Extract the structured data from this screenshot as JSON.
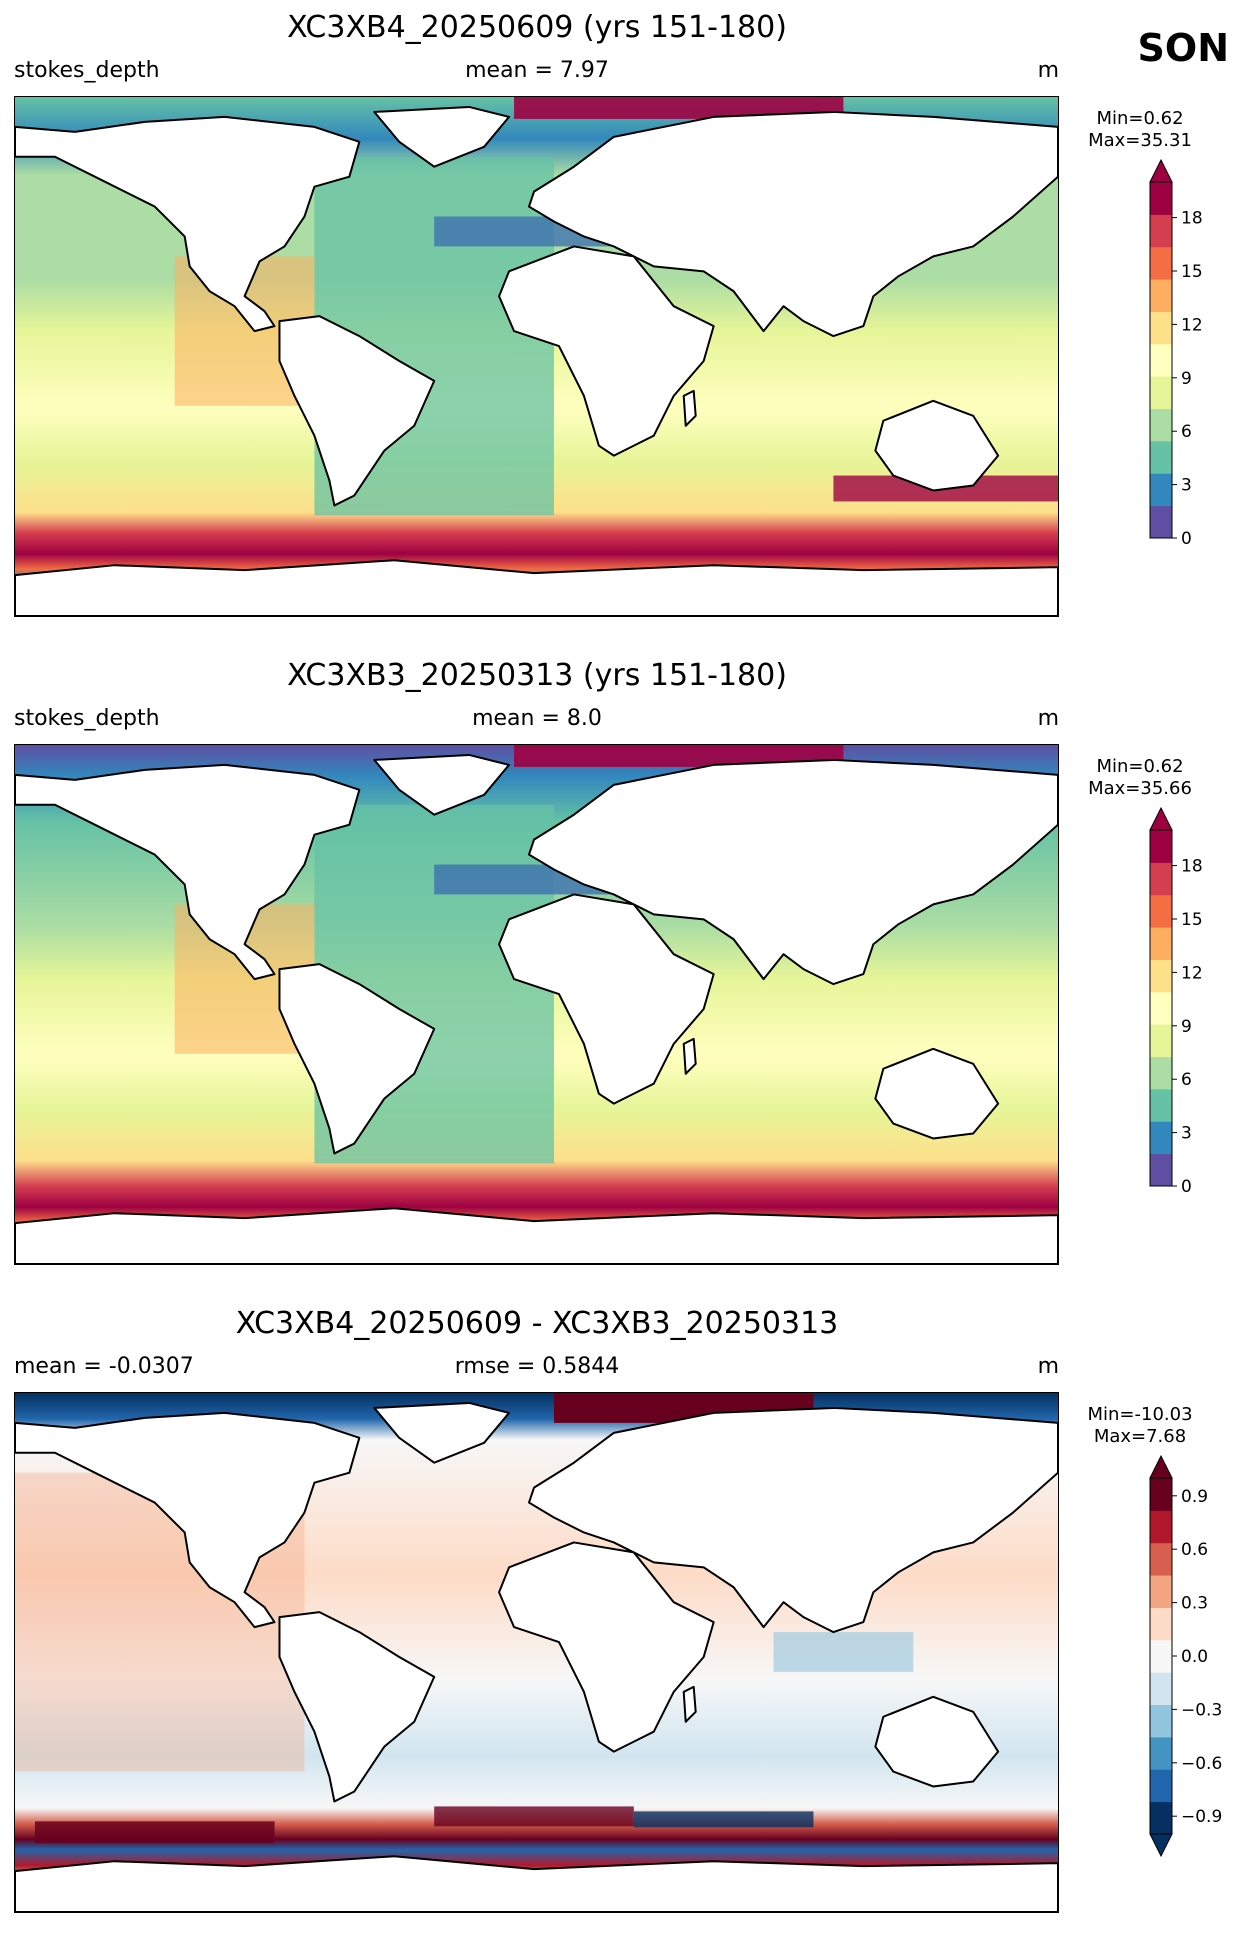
{
  "season": "SON",
  "panels": [
    {
      "title": "XC3XB4_20250609 (yrs 151-180)",
      "left_label": "stokes_depth",
      "center_label": "mean = 7.97",
      "right_label": "m",
      "min_label": "Min=0.62",
      "max_label": "Max=35.31",
      "colorbar": {
        "cmap": "Spectral_r",
        "ticks": [
          "0",
          "3",
          "6",
          "9",
          "12",
          "15",
          "18"
        ],
        "range": [
          0,
          20
        ]
      }
    },
    {
      "title": "XC3XB3_20250313 (yrs 151-180)",
      "left_label": "stokes_depth",
      "center_label": "mean = 8.0",
      "right_label": "m",
      "min_label": "Min=0.62",
      "max_label": "Max=35.66",
      "colorbar": {
        "cmap": "Spectral_r",
        "ticks": [
          "0",
          "3",
          "6",
          "9",
          "12",
          "15",
          "18"
        ],
        "range": [
          0,
          20
        ]
      }
    },
    {
      "title": "XC3XB4_20250609 - XC3XB3_20250313",
      "left_label": "mean = -0.0307",
      "center_label": "rmse = 0.5844",
      "right_label": "m",
      "min_label": "Min=-10.03",
      "max_label": "Max=7.68",
      "colorbar": {
        "cmap": "RdBu_r",
        "ticks": [
          "−0.9",
          "−0.6",
          "−0.3",
          "0.0",
          "0.3",
          "0.6",
          "0.9"
        ],
        "range": [
          -1,
          1
        ]
      }
    }
  ],
  "colors": {
    "spectral_r": [
      "#5e4fa2",
      "#3288bd",
      "#66c2a5",
      "#abdda4",
      "#e6f598",
      "#ffffbf",
      "#fee08b",
      "#fdae61",
      "#f46d43",
      "#d53e4f",
      "#9e0142"
    ],
    "rdbu_r": [
      "#053061",
      "#2166ac",
      "#4393c3",
      "#92c5de",
      "#d1e5f0",
      "#f7f7f7",
      "#fddbc7",
      "#f4a582",
      "#d6604d",
      "#b2182b",
      "#67001f"
    ]
  }
}
